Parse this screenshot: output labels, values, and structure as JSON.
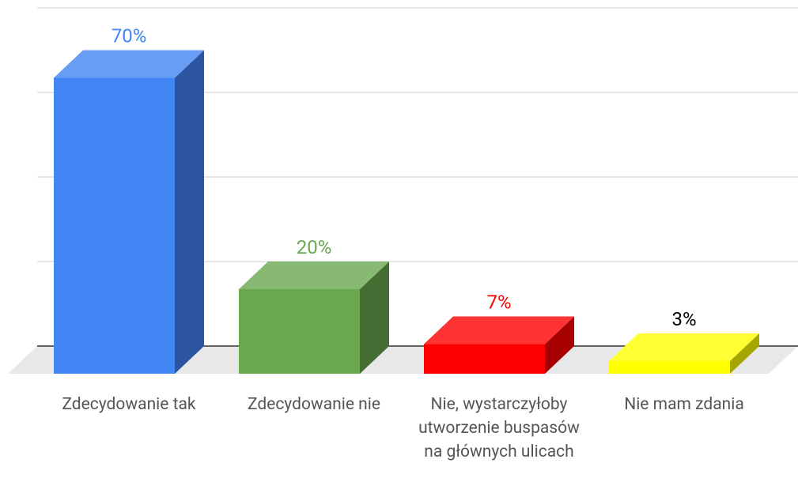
{
  "chart_data": {
    "type": "bar3d",
    "categories": [
      "Zdecydowanie tak",
      "Zdecydowanie nie",
      "Nie, wystarczyłoby utworzenie buspasów na głównych ulicach",
      "Nie mam zdania"
    ],
    "values": [
      70,
      20,
      7,
      3
    ],
    "value_labels": [
      "70%",
      "20%",
      "7%",
      "3%"
    ],
    "colors": [
      "#4285f4",
      "#6aa84f",
      "#ff0000",
      "#ffff00"
    ],
    "label_colors": [
      "#4285f4",
      "#6aa84f",
      "#ff0000",
      "#000000"
    ],
    "ylim": [
      0,
      80
    ],
    "yticks": [
      0,
      20,
      40,
      60,
      80
    ],
    "grid": true
  }
}
